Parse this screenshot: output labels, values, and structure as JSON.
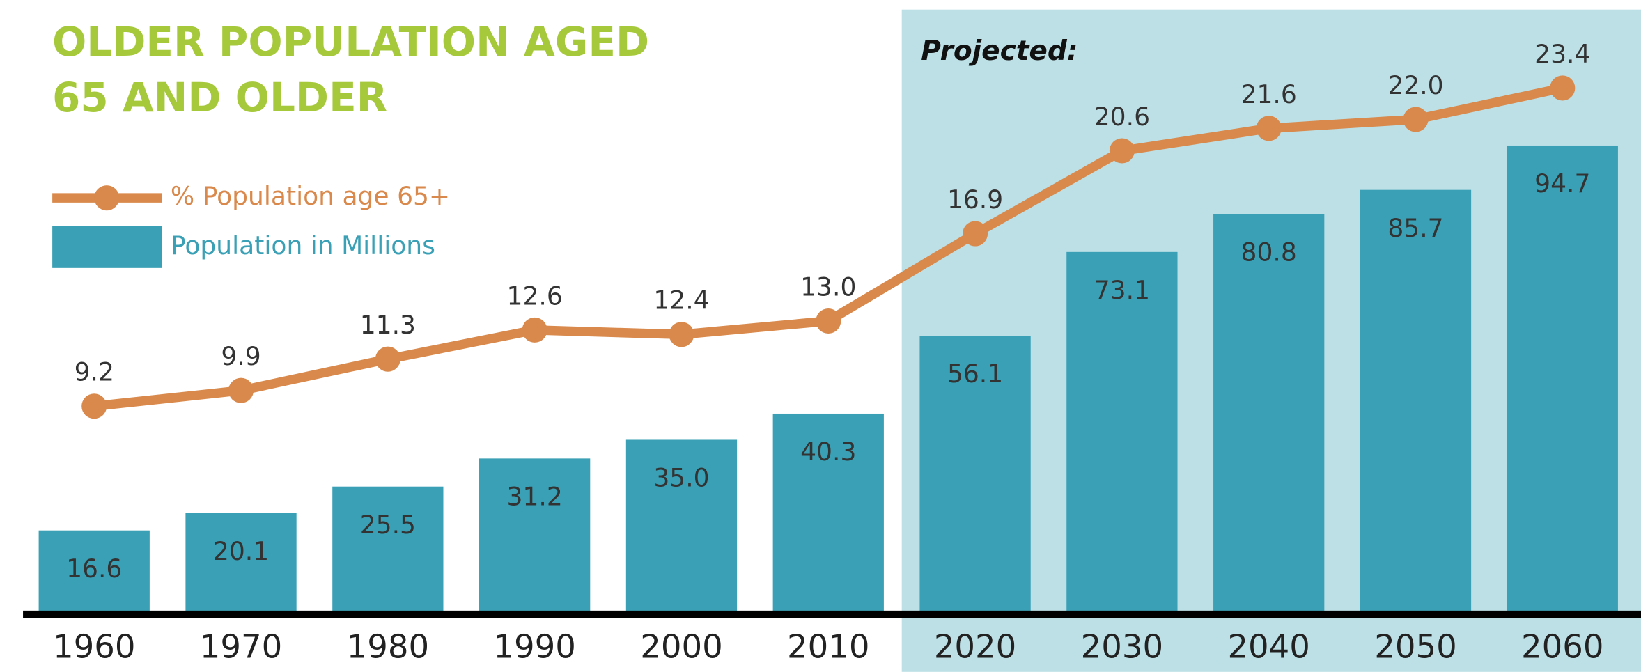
{
  "chart_data": {
    "type": "bar-line",
    "title": "OLDER POPULATION AGED 65 AND OLDER",
    "annotation": "Projected:",
    "shade_from": "2020",
    "shade_color": "#bde0e7",
    "categories": [
      "1960",
      "1970",
      "1980",
      "1990",
      "2000",
      "2010",
      "2020",
      "2030",
      "2040",
      "2050",
      "2060"
    ],
    "series": [
      {
        "name": "Population in Millions",
        "color": "#3aa0b5",
        "type": "bar",
        "values": [
          16.6,
          20.1,
          25.5,
          31.2,
          35.0,
          40.3,
          56.1,
          73.1,
          80.8,
          85.7,
          94.7
        ],
        "value_labels": [
          "16.6",
          "20.1",
          "25.5",
          "31.2",
          "35.0",
          "40.3",
          "56.1",
          "73.1",
          "80.8",
          "85.7",
          "94.7"
        ]
      },
      {
        "name": "% Population age 65+",
        "color": "#d9894b",
        "type": "line",
        "axis": "y2",
        "values": [
          9.2,
          9.9,
          11.3,
          12.6,
          12.4,
          13.0,
          16.9,
          20.6,
          21.6,
          22.0,
          23.4
        ],
        "value_labels": [
          "9.2",
          "9.9",
          "11.3",
          "12.6",
          "12.4",
          "13.0",
          "16.9",
          "20.6",
          "21.6",
          "22.0",
          "23.4"
        ]
      }
    ],
    "ylim": [
      0,
      100
    ],
    "y2lim": [
      0,
      22
    ]
  }
}
